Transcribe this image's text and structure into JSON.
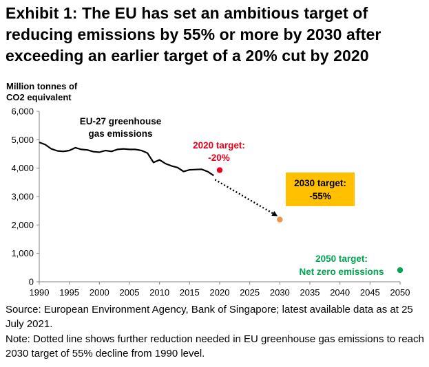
{
  "title_lines": [
    "Exhibit 1: The EU has set an ambitious target of",
    "reducing emissions by 55% or more by 2030 after",
    "exceeding an earlier target of a 20% cut by 2020"
  ],
  "chart_data": {
    "type": "line",
    "ylabel_lines": [
      "Million tonnes of",
      "CO2 equivalent"
    ],
    "xlabel": "",
    "xlim": [
      1990,
      2050
    ],
    "ylim": [
      0,
      6000
    ],
    "x_ticks": [
      "1990",
      "1995",
      "2000",
      "2005",
      "2010",
      "2015",
      "2020",
      "2025",
      "2030",
      "2035",
      "2040",
      "2045",
      "2050"
    ],
    "y_ticks": [
      "0",
      "1,000",
      "2,000",
      "3,000",
      "4,000",
      "5,000",
      "6,000"
    ],
    "grid": false,
    "series": [
      {
        "name": "EU-27 greenhouse gas emissions",
        "color": "#000000",
        "x": [
          1990,
          1991,
          1992,
          1993,
          1994,
          1995,
          1996,
          1997,
          1998,
          1999,
          2000,
          2001,
          2002,
          2003,
          2004,
          2005,
          2006,
          2007,
          2008,
          2009,
          2010,
          2011,
          2012,
          2013,
          2014,
          2015,
          2016,
          2017,
          2018,
          2019
        ],
        "y": [
          4910,
          4830,
          4680,
          4610,
          4590,
          4620,
          4720,
          4660,
          4640,
          4580,
          4560,
          4620,
          4590,
          4660,
          4680,
          4660,
          4660,
          4620,
          4530,
          4200,
          4290,
          4160,
          4080,
          4020,
          3880,
          3940,
          3950,
          3960,
          3880,
          3740
        ]
      }
    ],
    "series_label_lines": [
      "EU-27 greenhouse",
      "gas emissions"
    ],
    "projection": {
      "style": "dotted-arrow",
      "color": "#000000",
      "from": [
        2019,
        3740
      ],
      "to": [
        2030,
        2250
      ]
    },
    "targets": [
      {
        "key": "t2020",
        "x": 2020,
        "y": 3930,
        "color": "#e8001c",
        "label_lines": [
          "2020 target:",
          "-20%"
        ]
      },
      {
        "key": "t2030",
        "x": 2030,
        "y": 2190,
        "color": "#f09545",
        "label_lines": [
          "2030 target:",
          "-55%"
        ],
        "box_color": "#ffc000"
      },
      {
        "key": "t2050",
        "x": 2050,
        "y": 410,
        "color": "#00a651",
        "label_lines": [
          "2050 target:",
          "Net zero emissions"
        ]
      }
    ]
  },
  "source_text": "Source: European Environment Agency, Bank of Singapore; latest available data as at 25 July 2021.",
  "note_text": "Note: Dotted line shows further reduction needed in EU greenhouse gas emissions to reach 2030 target of 55% decline from 1990 level."
}
